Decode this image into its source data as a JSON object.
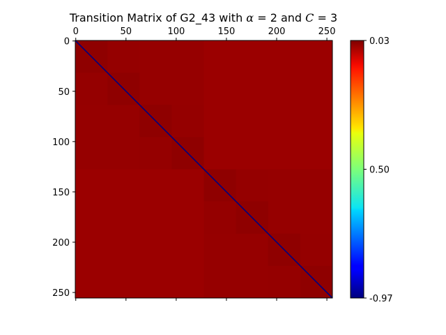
{
  "chart_data": {
    "type": "heatmap",
    "title": "Transition Matrix of G2_43 with α = 2 and C = 3",
    "title_parts": {
      "prefix": "Transition Matrix of G2_43 with ",
      "alpha_symbol": "α",
      "alpha_value": " = 2",
      "middle": " and ",
      "c_symbol": "C",
      "c_value": " = 3"
    },
    "matrix_size": 256,
    "xlim": [
      0,
      256
    ],
    "ylim": [
      256,
      0
    ],
    "x_ticks": [
      0,
      50,
      100,
      150,
      200,
      250
    ],
    "y_ticks": [
      0,
      50,
      100,
      150,
      200,
      250
    ],
    "x_tick_labels": [
      "0",
      "50",
      "100",
      "150",
      "200",
      "250"
    ],
    "y_tick_labels": [
      "0",
      "50",
      "100",
      "150",
      "200",
      "250"
    ],
    "x_axis_position": "top",
    "colormap": "jet",
    "colorbar": {
      "tick_labels": [
        "0.03",
        "0.50",
        "-0.97"
      ],
      "tick_values": [
        0.03,
        0.5,
        -0.97
      ],
      "tick_fractions_from_top": [
        0.0,
        0.5,
        1.0
      ]
    },
    "structure": {
      "diagonal_value": -0.97,
      "background_value": 0.03,
      "block_levels": [
        {
          "size": 32,
          "value": 0.0295
        },
        {
          "size": 64,
          "value": 0.0298
        },
        {
          "size": 128,
          "value": 0.03
        }
      ]
    },
    "grid": false
  }
}
